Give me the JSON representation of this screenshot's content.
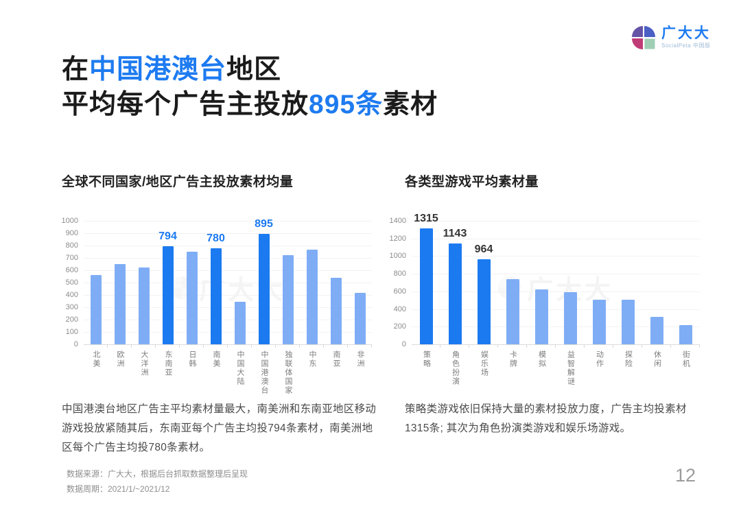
{
  "colors": {
    "accent": "#1e7bf0",
    "bar_light": "#7fadf5",
    "bar_dark": "#1b7af0",
    "logo_tl": "#6553a6",
    "logo_tr": "#4a5fc4",
    "logo_bl": "#bf3c77",
    "logo_br": "#9fceb4"
  },
  "logo": {
    "name": "广大大",
    "subtitle": "SocialPeta 中国版"
  },
  "title": {
    "line1": {
      "pre": "在",
      "highlight": "中国港澳台",
      "post": "地区"
    },
    "line2": {
      "pre": "平均每个广告主投放",
      "highlight": "895条",
      "post": "素材"
    }
  },
  "sections": [
    {
      "heading": "全球不同国家/地区广告主投放素材均量",
      "paragraph": "中国港澳台地区广告主平均素材量最大，南美洲和东南亚地区移动游戏投放紧随其后，东南亚每个广告主均投794条素材，南美洲地区每个广告主均投780条素材。"
    },
    {
      "heading": "各类型游戏平均素材量",
      "paragraph": "策略类游戏依旧保持大量的素材投放力度，广告主均投素材1315条; 其次为角色扮演类游戏和娱乐场游戏。"
    }
  ],
  "chart_data": [
    {
      "type": "bar",
      "title": "全球不同国家/地区广告主投放素材均量",
      "categories": [
        "北美",
        "欧洲",
        "大洋洲",
        "东南亚",
        "日韩",
        "南美",
        "中国大陆",
        "中国港澳台",
        "独联体国家",
        "中东",
        "南亚",
        "非洲"
      ],
      "values": [
        560,
        650,
        620,
        794,
        750,
        780,
        345,
        895,
        725,
        765,
        540,
        415
      ],
      "ylim": [
        0,
        1000
      ],
      "ystep": 100,
      "grid": true,
      "xlabel": "",
      "ylabel": "",
      "highlight_indices": [
        3,
        5,
        7
      ],
      "data_labels": {
        "3": "794",
        "5": "780",
        "7": "895"
      },
      "label_color": "#1b7af0",
      "bar_color": "#7fadf5",
      "highlight_color": "#1b7af0"
    },
    {
      "type": "bar",
      "title": "各类型游戏平均素材量",
      "categories": [
        "策略",
        "角色扮演",
        "娱乐场",
        "卡牌",
        "模拟",
        "益智解谜",
        "动作",
        "探险",
        "休闲",
        "街机"
      ],
      "values": [
        1315,
        1143,
        964,
        740,
        620,
        590,
        505,
        505,
        310,
        215
      ],
      "ylim": [
        0,
        1400
      ],
      "ystep": 200,
      "grid": true,
      "xlabel": "",
      "ylabel": "",
      "highlight_indices": [
        0,
        1,
        2
      ],
      "data_labels": {
        "0": "1315",
        "1": "1143",
        "2": "964"
      },
      "label_color": "#333333",
      "bar_color": "#7fadf5",
      "highlight_color": "#1b7af0"
    }
  ],
  "watermark": "广大大",
  "footer": {
    "source": "数据来源：广大大，根据后台抓取数据整理后呈现",
    "period": "数据周期：2021/1/~2021/12"
  },
  "page": {
    "number": "12"
  }
}
